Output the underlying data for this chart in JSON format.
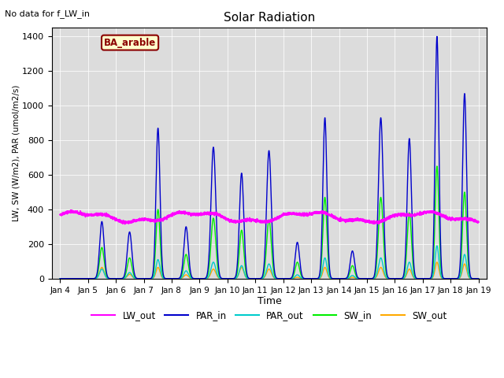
{
  "title": "Solar Radiation",
  "xlabel": "Time",
  "ylabel": "LW, SW (W/m2), PAR (umol/m2/s)",
  "top_left_text": "No data for f_LW_in",
  "label_text": "BA_arable",
  "ylim": [
    0,
    1450
  ],
  "yticks": [
    0,
    200,
    400,
    600,
    800,
    1000,
    1200,
    1400
  ],
  "plot_bg_color": "#dcdcdc",
  "lw_out_color": "#ff00ff",
  "par_in_color": "#0000cc",
  "par_out_color": "#00cccc",
  "sw_in_color": "#00ee00",
  "sw_out_color": "#ffaa00",
  "par_in_peaks": [
    0,
    330,
    270,
    870,
    300,
    760,
    610,
    740,
    210,
    930,
    160,
    930,
    810,
    1400,
    1070
  ],
  "par_out_peaks": [
    0,
    55,
    35,
    110,
    45,
    95,
    75,
    85,
    22,
    120,
    18,
    120,
    95,
    190,
    140
  ],
  "sw_in_peaks": [
    0,
    180,
    120,
    400,
    140,
    350,
    280,
    340,
    95,
    470,
    75,
    470,
    380,
    650,
    500
  ],
  "sw_out_peaks": [
    0,
    65,
    25,
    65,
    22,
    55,
    65,
    55,
    8,
    65,
    8,
    65,
    55,
    95,
    85
  ],
  "tick_labels": [
    "Jan 4",
    "Jan 5",
    "Jan 6",
    "Jan 7",
    "Jan 8",
    "Jan 9",
    "Jan 10",
    "Jan 11",
    "Jan 12",
    "Jan 13",
    "Jan 14",
    "Jan 15",
    "Jan 16",
    "Jan 17",
    "Jan 18",
    "Jan 19"
  ],
  "n_days": 15,
  "points_per_day": 288
}
